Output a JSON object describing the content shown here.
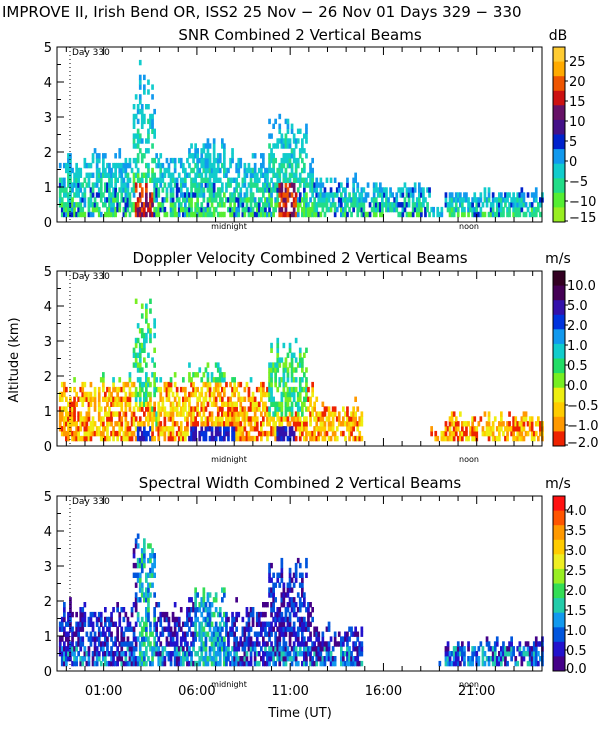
{
  "header": {
    "title": "IMPROVE II,  Irish Bend OR, ISS2  25 Nov − 26 Nov 01 Days 329 − 330"
  },
  "shared_axes": {
    "ylabel": "Altitude (km)",
    "xlabel": "Time (UT)",
    "ylim": [
      0,
      5
    ],
    "yticks": [
      "0",
      "1",
      "2",
      "3",
      "4",
      "5"
    ],
    "xticks": [
      {
        "t": 1,
        "label": "01:00"
      },
      {
        "t": 6,
        "label": "06:00"
      },
      {
        "t": 11,
        "label": "11:00"
      },
      {
        "t": 16,
        "label": "16:00"
      },
      {
        "t": 21,
        "label": "21:00"
      }
    ],
    "xlim": [
      -1.5,
      24.5
    ],
    "day_marker": {
      "t": 0,
      "label": "Day 330"
    },
    "inner_labels": [
      {
        "t": 7.5,
        "label": "midnight"
      },
      {
        "t": 19.5,
        "label": "noon"
      }
    ]
  },
  "chart_data": [
    {
      "type": "heatmap",
      "key": "snr",
      "title": "SNR Combined 2 Vertical Beams",
      "unit": "dB",
      "colorbar_labels": [
        "25",
        "20",
        "15",
        "10",
        "5",
        "0",
        "−5",
        "−10",
        "−15"
      ],
      "colorbar_colors": [
        "#ffcc33",
        "#ffaa00",
        "#ee5500",
        "#cc1111",
        "#661166",
        "#441188",
        "#0022cc",
        "#1199ee",
        "#11cccc",
        "#22dd88",
        "#55ee33",
        "#99ee22"
      ]
    },
    {
      "type": "heatmap",
      "key": "doppler",
      "title": "Doppler Velocity Combined 2 Vertical Beams",
      "unit": "m/s",
      "colorbar_labels": [
        "10.0",
        "5.0",
        "2.0",
        "1.0",
        "0.5",
        "0.0",
        "−0.5",
        "−1.0",
        "−2.0"
      ],
      "colorbar_colors": [
        "#330022",
        "#440055",
        "#3311aa",
        "#0033dd",
        "#1199ee",
        "#11cccc",
        "#22dd66",
        "#77ee22",
        "#eeee11",
        "#ffcc00",
        "#ff9900",
        "#ee2200"
      ]
    },
    {
      "type": "heatmap",
      "key": "width",
      "title": "Spectral Width Combined 2 Vertical Beams",
      "unit": "m/s",
      "colorbar_labels": [
        "4.0",
        "3.5",
        "3.0",
        "2.5",
        "2.0",
        "1.5",
        "1.0",
        "0.5",
        "0.0"
      ],
      "colorbar_colors": [
        "#ff1111",
        "#ff5500",
        "#ff9900",
        "#ffcc00",
        "#eeee22",
        "#99ee22",
        "#33dd55",
        "#22ccaa",
        "#1199ee",
        "#0055dd",
        "#2211cc",
        "#440088"
      ]
    }
  ]
}
